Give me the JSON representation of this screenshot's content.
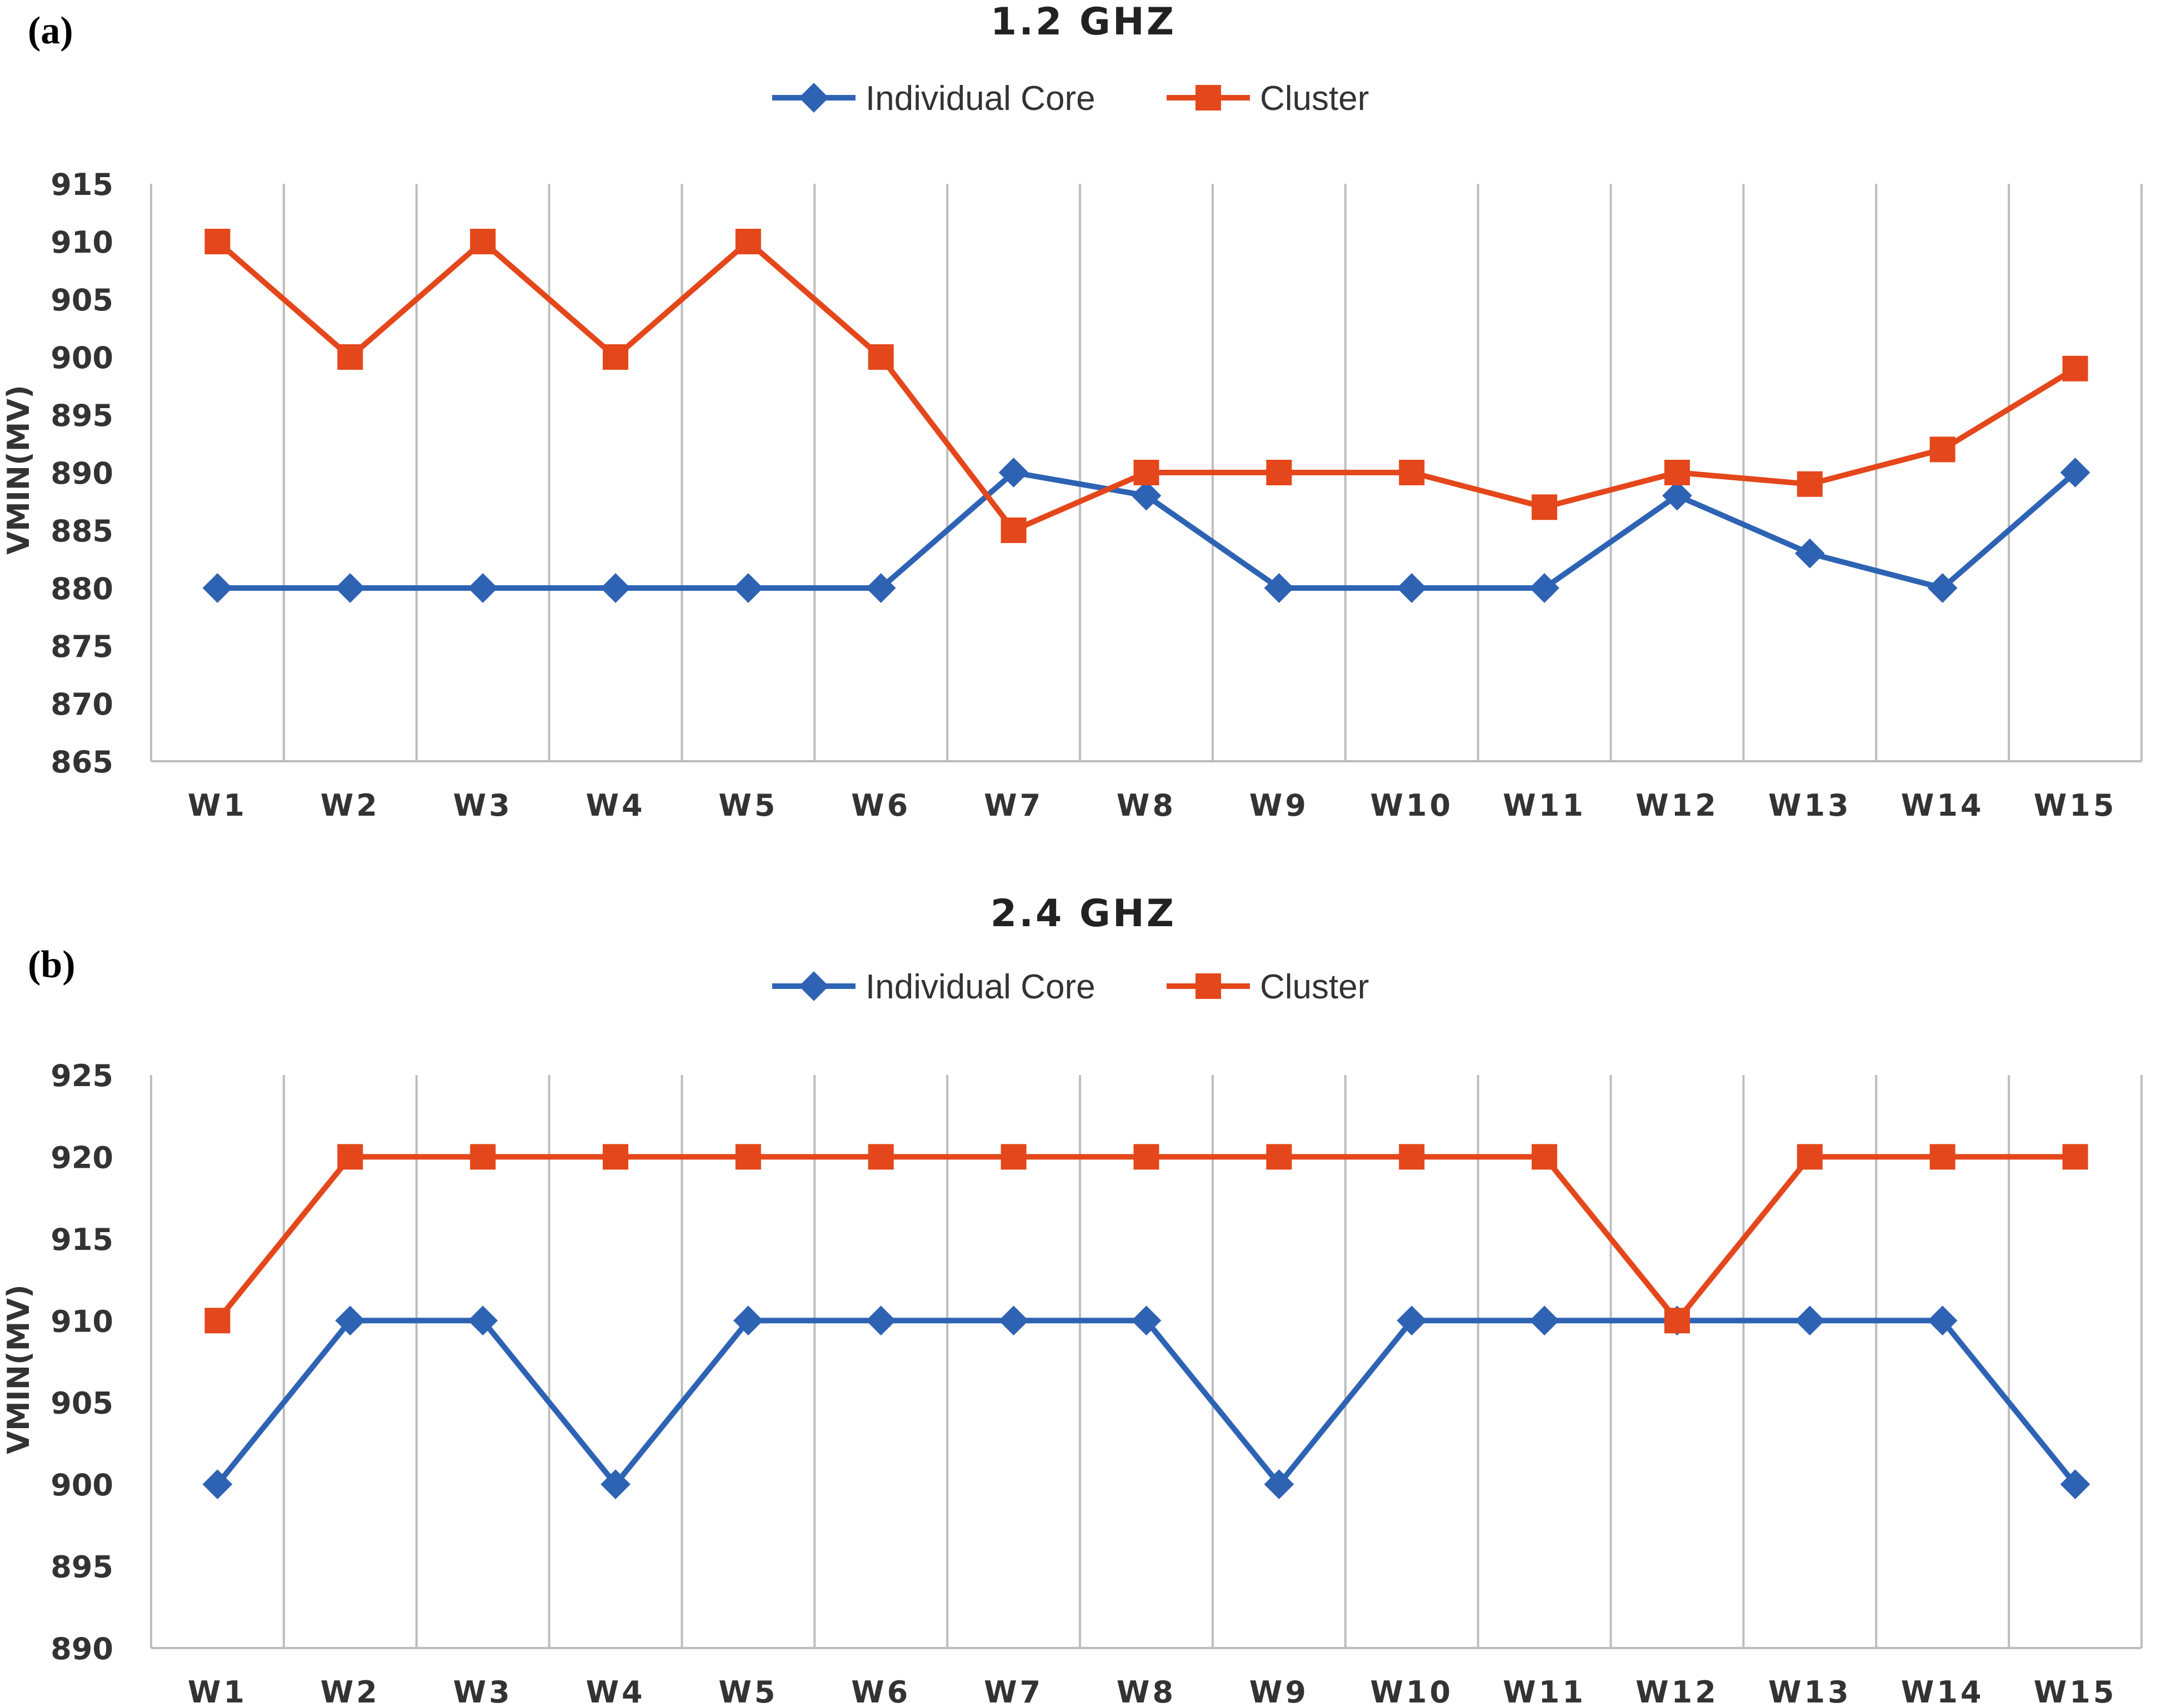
{
  "chart_data": [
    {
      "type": "line",
      "panel_label": "(a)",
      "title": "1.2 GHZ",
      "ylabel": "VMIN(MV)",
      "xlabel": "",
      "ylim": [
        865,
        915
      ],
      "yticks": [
        865,
        870,
        875,
        880,
        885,
        890,
        895,
        900,
        905,
        910,
        915
      ],
      "grid": "vertical",
      "legend_position": "top-center",
      "categories": [
        "W1",
        "W2",
        "W3",
        "W4",
        "W5",
        "W6",
        "W7",
        "W8",
        "W9",
        "W10",
        "W11",
        "W12",
        "W13",
        "W14",
        "W15"
      ],
      "series": [
        {
          "name": "Individual Core",
          "color": "#2E63B4",
          "marker": "diamond",
          "values": [
            880,
            880,
            880,
            880,
            880,
            880,
            890,
            888,
            880,
            880,
            880,
            888,
            883,
            880,
            890
          ]
        },
        {
          "name": "Cluster",
          "color": "#E4471B",
          "marker": "square",
          "values": [
            910,
            900,
            910,
            900,
            910,
            900,
            885,
            890,
            890,
            890,
            887,
            890,
            889,
            892,
            899
          ]
        }
      ]
    },
    {
      "type": "line",
      "panel_label": "(b)",
      "title": "2.4 GHZ",
      "ylabel": "VMIN(MV)",
      "xlabel": "",
      "ylim": [
        890,
        925
      ],
      "yticks": [
        890,
        895,
        900,
        905,
        910,
        915,
        920,
        925
      ],
      "grid": "vertical",
      "legend_position": "top-center",
      "categories": [
        "W1",
        "W2",
        "W3",
        "W4",
        "W5",
        "W6",
        "W7",
        "W8",
        "W9",
        "W10",
        "W11",
        "W12",
        "W13",
        "W14",
        "W15"
      ],
      "series": [
        {
          "name": "Individual Core",
          "color": "#2E63B4",
          "marker": "diamond",
          "values": [
            900,
            910,
            910,
            900,
            910,
            910,
            910,
            910,
            900,
            910,
            910,
            910,
            910,
            910,
            900
          ]
        },
        {
          "name": "Cluster",
          "color": "#E4471B",
          "marker": "square",
          "values": [
            910,
            920,
            920,
            920,
            920,
            920,
            920,
            920,
            920,
            920,
            920,
            910,
            920,
            920,
            920
          ]
        }
      ]
    }
  ]
}
